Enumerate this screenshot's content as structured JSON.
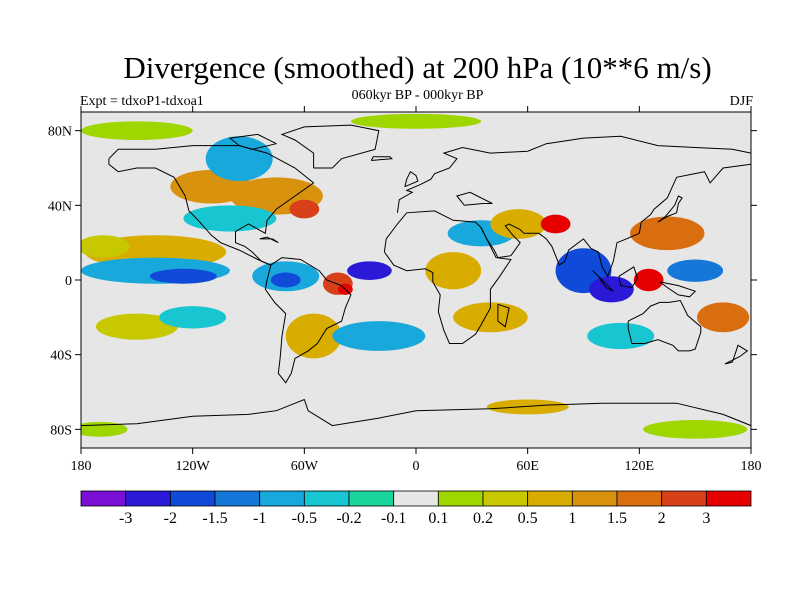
{
  "header": {
    "title": "Divergence (smoothed) at 200 hPa (10**6 m/s)",
    "subtitle": "060kyr BP - 000kyr BP",
    "left_label": "Expt = tdxoP1-tdxoa1",
    "right_label": "DJF"
  },
  "map": {
    "background_color": "#e6e6e6",
    "projection": "cylindrical-equidistant",
    "lon_range": [
      -180,
      180
    ],
    "lat_range": [
      -90,
      90
    ],
    "lon_ticks": [
      {
        "value": -180,
        "label": "180"
      },
      {
        "value": -120,
        "label": "120W"
      },
      {
        "value": -60,
        "label": "60W"
      },
      {
        "value": 0,
        "label": "0"
      },
      {
        "value": 60,
        "label": "60E"
      },
      {
        "value": 120,
        "label": "120E"
      },
      {
        "value": 180,
        "label": "180"
      }
    ],
    "lat_ticks": [
      {
        "value": 80,
        "label": "80N"
      },
      {
        "value": 40,
        "label": "40N"
      },
      {
        "value": 0,
        "label": "0"
      },
      {
        "value": -40,
        "label": "40S"
      },
      {
        "value": -80,
        "label": "80S"
      }
    ],
    "features": [
      {
        "lon": -140,
        "lat": 15,
        "rx": 38,
        "ry": 9,
        "level": 10
      },
      {
        "lon": -168,
        "lat": 18,
        "rx": 14,
        "ry": 6,
        "level": 9
      },
      {
        "lon": -140,
        "lat": 5,
        "rx": 40,
        "ry": 7,
        "level": 4
      },
      {
        "lon": -125,
        "lat": 2,
        "rx": 18,
        "ry": 4,
        "level": 2
      },
      {
        "lon": -150,
        "lat": -25,
        "rx": 22,
        "ry": 7,
        "level": 9
      },
      {
        "lon": -120,
        "lat": -20,
        "rx": 18,
        "ry": 6,
        "level": 5
      },
      {
        "lon": -110,
        "lat": 50,
        "rx": 22,
        "ry": 9,
        "level": 11
      },
      {
        "lon": -75,
        "lat": 45,
        "rx": 25,
        "ry": 10,
        "level": 11
      },
      {
        "lon": -60,
        "lat": 38,
        "rx": 8,
        "ry": 5,
        "level": 13
      },
      {
        "lon": -100,
        "lat": 33,
        "rx": 25,
        "ry": 7,
        "level": 5
      },
      {
        "lon": -95,
        "lat": 65,
        "rx": 18,
        "ry": 12,
        "level": 4
      },
      {
        "lon": -70,
        "lat": 2,
        "rx": 18,
        "ry": 8,
        "level": 4
      },
      {
        "lon": -70,
        "lat": 0,
        "rx": 8,
        "ry": 4,
        "level": 2
      },
      {
        "lon": -42,
        "lat": -2,
        "rx": 8,
        "ry": 6,
        "level": 13
      },
      {
        "lon": -38,
        "lat": -5,
        "rx": 4,
        "ry": 3,
        "level": 14
      },
      {
        "lon": -25,
        "lat": 5,
        "rx": 12,
        "ry": 5,
        "level": 1
      },
      {
        "lon": -55,
        "lat": -30,
        "rx": 15,
        "ry": 12,
        "level": 10
      },
      {
        "lon": 35,
        "lat": 25,
        "rx": 18,
        "ry": 7,
        "level": 4
      },
      {
        "lon": 20,
        "lat": 5,
        "rx": 15,
        "ry": 10,
        "level": 10
      },
      {
        "lon": 55,
        "lat": 30,
        "rx": 15,
        "ry": 8,
        "level": 10
      },
      {
        "lon": 75,
        "lat": 30,
        "rx": 8,
        "ry": 5,
        "level": 14
      },
      {
        "lon": 90,
        "lat": 5,
        "rx": 15,
        "ry": 12,
        "level": 2
      },
      {
        "lon": 105,
        "lat": -5,
        "rx": 12,
        "ry": 7,
        "level": 1
      },
      {
        "lon": 125,
        "lat": 0,
        "rx": 8,
        "ry": 6,
        "level": 14
      },
      {
        "lon": 135,
        "lat": 25,
        "rx": 20,
        "ry": 9,
        "level": 12
      },
      {
        "lon": 165,
        "lat": -20,
        "rx": 14,
        "ry": 8,
        "level": 12
      },
      {
        "lon": 150,
        "lat": 5,
        "rx": 15,
        "ry": 6,
        "level": 3
      },
      {
        "lon": 40,
        "lat": -20,
        "rx": 20,
        "ry": 8,
        "level": 10
      },
      {
        "lon": -20,
        "lat": -30,
        "rx": 25,
        "ry": 8,
        "level": 4
      },
      {
        "lon": 110,
        "lat": -30,
        "rx": 18,
        "ry": 7,
        "level": 5
      },
      {
        "lon": -150,
        "lat": 80,
        "rx": 30,
        "ry": 5,
        "level": 8
      },
      {
        "lon": 0,
        "lat": 85,
        "rx": 35,
        "ry": 4,
        "level": 8
      },
      {
        "lon": 150,
        "lat": -80,
        "rx": 28,
        "ry": 5,
        "level": 8
      },
      {
        "lon": -170,
        "lat": -80,
        "rx": 15,
        "ry": 4,
        "level": 8
      },
      {
        "lon": 60,
        "lat": -68,
        "rx": 22,
        "ry": 4,
        "level": 10
      }
    ]
  },
  "colorbar": {
    "colors": [
      "#7b0fd6",
      "#2a1ad8",
      "#0f4ad8",
      "#1578d8",
      "#18a8db",
      "#18c6d2",
      "#18d69b",
      "#e6e6e6",
      "#9fd600",
      "#c8c800",
      "#d8ad00",
      "#d8920d",
      "#d86e0f",
      "#d8401a",
      "#e60000"
    ],
    "labels": [
      "-3",
      "-2",
      "-1.5",
      "-1",
      "-0.5",
      "-0.2",
      "-0.1",
      "0.1",
      "0.2",
      "0.5",
      "1",
      "1.5",
      "2",
      "3"
    ]
  }
}
